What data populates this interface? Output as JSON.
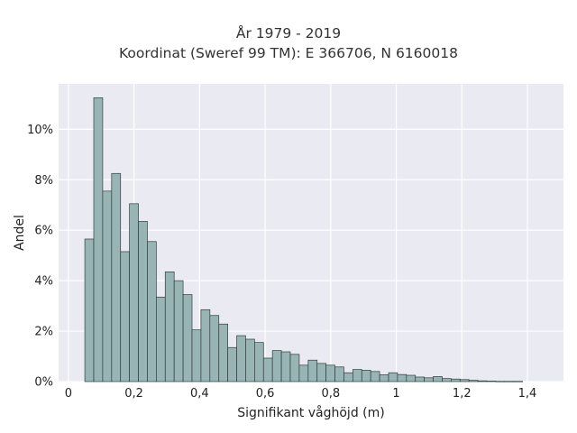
{
  "chart_data": {
    "type": "bar",
    "title": "År 1979 - 2019",
    "subtitle": "Koordinat (Sweref 99 TM): E 366706, N 6160018",
    "xlabel": "Signifikant våghöjd (m)",
    "ylabel": "Andel",
    "xlim": [
      -0.03,
      1.51
    ],
    "ylim": [
      0,
      0.118
    ],
    "x_ticks": [
      0,
      0.2,
      0.4,
      0.6,
      0.8,
      1,
      1.2,
      1.4
    ],
    "x_tick_labels": [
      "0",
      "0,2",
      "0,4",
      "0,6",
      "0,8",
      "1",
      "1,2",
      "1,4"
    ],
    "y_ticks": [
      0,
      0.02,
      0.04,
      0.06,
      0.08,
      0.1
    ],
    "y_tick_labels": [
      "0%",
      "2%",
      "4%",
      "6%",
      "8%",
      "10%"
    ],
    "grid": true,
    "bar_color": "#98b4b4",
    "bar_edge_color": "#2f3f3f",
    "plot_background": "#eaeaf2",
    "bin_start": 0.05,
    "bin_width": 0.02725,
    "values": [
      0.0565,
      0.1125,
      0.0755,
      0.0825,
      0.0515,
      0.0705,
      0.0635,
      0.0555,
      0.0335,
      0.0435,
      0.04,
      0.0345,
      0.0205,
      0.0285,
      0.0262,
      0.0228,
      0.0135,
      0.0182,
      0.0168,
      0.0155,
      0.0093,
      0.0123,
      0.0118,
      0.0108,
      0.0065,
      0.0085,
      0.0072,
      0.0065,
      0.0058,
      0.0035,
      0.0048,
      0.0045,
      0.004,
      0.0027,
      0.0035,
      0.0028,
      0.0025,
      0.0018,
      0.0015,
      0.002,
      0.0012,
      0.001,
      0.0008,
      0.0005,
      0.0003,
      0.0002,
      0.0001,
      0.0001,
      0.0001
    ]
  }
}
